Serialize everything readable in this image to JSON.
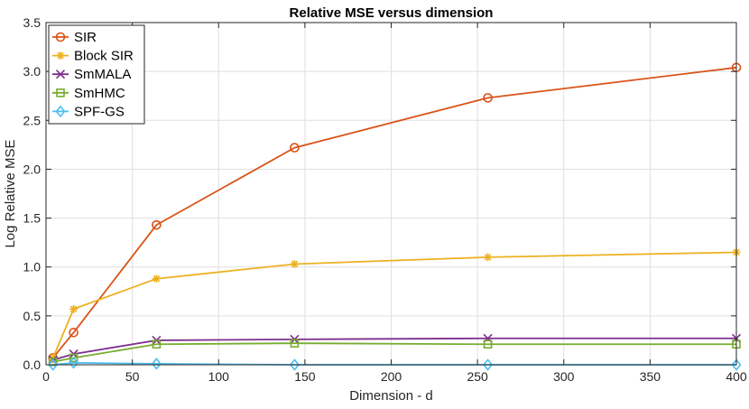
{
  "chart_data": {
    "type": "line",
    "title": "Relative MSE versus dimension",
    "xlabel": "Dimension - d",
    "ylabel": "Log Relative MSE",
    "xlim": [
      0,
      400
    ],
    "ylim": [
      0,
      3.5
    ],
    "xticks": [
      0,
      50,
      100,
      150,
      200,
      250,
      300,
      350,
      400
    ],
    "yticks": [
      0,
      0.5,
      1,
      1.5,
      2,
      2.5,
      3,
      3.5
    ],
    "xtick_labels": [
      "0",
      "50",
      "100",
      "150",
      "200",
      "250",
      "300",
      "350",
      "400"
    ],
    "ytick_labels": [
      "0.0",
      "0.5",
      "1.0",
      "1.5",
      "2.0",
      "2.5",
      "3.0",
      "3.5"
    ],
    "grid": true,
    "legend_position": "top-left",
    "x": [
      4,
      16,
      64,
      144,
      256,
      400
    ],
    "series": [
      {
        "name": "SIR",
        "color": "#d95319",
        "marker": "circle",
        "values": [
          0.07,
          0.33,
          1.43,
          2.22,
          2.73,
          3.04
        ]
      },
      {
        "name": "Block SIR",
        "color": "#edb120",
        "marker": "asterisk",
        "values": [
          0.07,
          0.57,
          0.88,
          1.03,
          1.1,
          1.15
        ]
      },
      {
        "name": "SmMALA",
        "color": "#7e2f8e",
        "marker": "x",
        "values": [
          0.05,
          0.11,
          0.25,
          0.26,
          0.27,
          0.27
        ]
      },
      {
        "name": "SmHMC",
        "color": "#77ac30",
        "marker": "square",
        "values": [
          0.03,
          0.07,
          0.21,
          0.22,
          0.21,
          0.21
        ]
      },
      {
        "name": "SPF-GS",
        "color": "#4dbeee",
        "marker": "diamond",
        "values": [
          0.0,
          0.02,
          0.01,
          0.0,
          0.0,
          0.0
        ]
      }
    ]
  }
}
